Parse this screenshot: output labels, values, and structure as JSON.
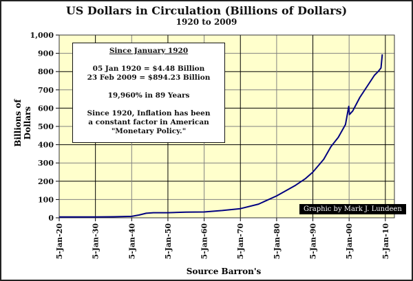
{
  "chart_data": {
    "type": "line",
    "title": "US Dollars in Circulation (Billions of Dollars)",
    "subtitle": "1920 to 2009",
    "xlabel": "Source Barron's",
    "ylabel": "Billions of Dollars",
    "ylim": [
      0,
      1000
    ],
    "xlim": [
      1920,
      2012.5
    ],
    "y_ticks": [
      "0",
      "100",
      "200",
      "300",
      "400",
      "500",
      "600",
      "700",
      "800",
      "900",
      "1,000"
    ],
    "y_tick_values": [
      0,
      100,
      200,
      300,
      400,
      500,
      600,
      700,
      800,
      900,
      1000
    ],
    "x_ticks": [
      "5-Jan-20",
      "5-Jan-30",
      "5-Jan-40",
      "5-Jan-50",
      "5-Jan-60",
      "5-Jan-70",
      "5-Jan-80",
      "5-Jan-90",
      "5-Jan-00",
      "5-Jan-10"
    ],
    "x_tick_values": [
      1920,
      1930,
      1940,
      1950,
      1960,
      1970,
      1980,
      1990,
      2000,
      2010
    ],
    "grid": true,
    "series": [
      {
        "name": "US Dollars in Circulation",
        "color": "#000080",
        "x": [
          1920,
          1925,
          1930,
          1935,
          1940,
          1942,
          1944,
          1946,
          1950,
          1955,
          1960,
          1965,
          1970,
          1975,
          1980,
          1985,
          1988,
          1990,
          1993,
          1995,
          1997,
          1999,
          1999.9,
          2000.1,
          2001,
          2003,
          2005,
          2007,
          2008,
          2008.8,
          2009.15
        ],
        "y": [
          4.48,
          4.7,
          4.5,
          5.5,
          8,
          15,
          25,
          28,
          28,
          31,
          32,
          40,
          50,
          75,
          120,
          175,
          215,
          250,
          320,
          390,
          440,
          510,
          610,
          565,
          585,
          660,
          720,
          780,
          800,
          820,
          894.23
        ]
      }
    ]
  },
  "info_box": {
    "heading": "Since January 1920",
    "line1": "05 Jan 1920 = $4.48 Billion",
    "line2": "23 Feb 2009 = $894.23 Billion",
    "line3": "19,960% in 89 Years",
    "line4": "Since 1920, Inflation has been",
    "line5": "a constant factor in American",
    "line6": "\"Monetary Policy.\""
  },
  "credit": "Graphic by Mark J. Lundeen",
  "colors": {
    "plot_bg": "#FFFFCC",
    "line": "#000080",
    "grid_dark": "#000000",
    "grid_gray": "#808080"
  }
}
